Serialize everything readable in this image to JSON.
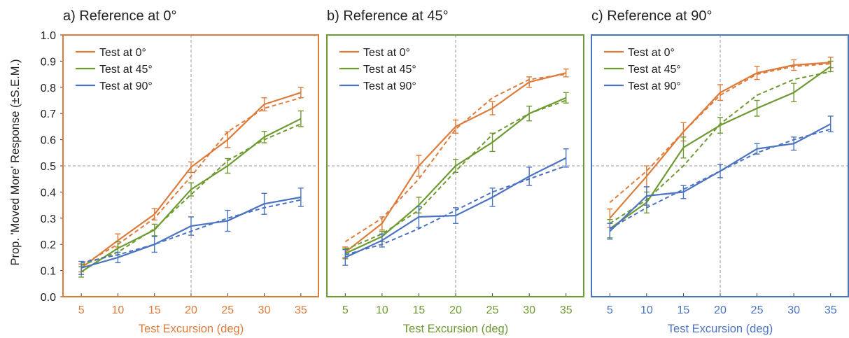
{
  "figure": {
    "ylabel": "Prop. 'Moved More' Response (±S.E.M.)"
  },
  "colors": {
    "test0": "#dd7b3a",
    "test45": "#6e9a32",
    "test90": "#4a73c2",
    "ref_line": "#999999",
    "axis": "#444444"
  },
  "chart_data": [
    {
      "type": "line",
      "title": "a) Reference at 0°",
      "xlabel": "Test Excursion (deg)",
      "frame_color": "#dd7b3a",
      "x": [
        5,
        10,
        15,
        20,
        25,
        30,
        35
      ],
      "xlim": [
        2.5,
        37.5
      ],
      "ylim": [
        0,
        1
      ],
      "yticks": [
        "0.0",
        "0.1",
        "0.2",
        "0.3",
        "0.4",
        "0.5",
        "0.6",
        "0.7",
        "0.8",
        "0.9",
        "1.0"
      ],
      "reference_x": 20,
      "reference_y": 0.5,
      "legend_position": "top-left",
      "series": [
        {
          "name": "Test at 0°",
          "color": "#dd7b3a",
          "values": [
            0.11,
            0.215,
            0.315,
            0.495,
            0.6,
            0.735,
            0.78
          ],
          "sem": [
            0.015,
            0.025,
            0.022,
            0.02,
            0.03,
            0.025,
            0.02
          ],
          "fit": [
            0.12,
            0.2,
            0.3,
            0.46,
            0.63,
            0.72,
            0.76
          ]
        },
        {
          "name": "Test at 45°",
          "color": "#6e9a32",
          "values": [
            0.095,
            0.185,
            0.255,
            0.41,
            0.5,
            0.61,
            0.68
          ],
          "sem": [
            0.02,
            0.025,
            0.022,
            0.025,
            0.028,
            0.022,
            0.03
          ],
          "fit": [
            0.12,
            0.17,
            0.26,
            0.39,
            0.52,
            0.6,
            0.66
          ]
        },
        {
          "name": "Test at 90°",
          "color": "#4a73c2",
          "values": [
            0.11,
            0.15,
            0.2,
            0.27,
            0.29,
            0.355,
            0.38
          ],
          "sem": [
            0.025,
            0.02,
            0.03,
            0.035,
            0.04,
            0.04,
            0.035
          ],
          "fit": [
            0.13,
            0.16,
            0.2,
            0.25,
            0.3,
            0.34,
            0.37
          ]
        }
      ]
    },
    {
      "type": "line",
      "title": "b) Reference at 45°",
      "xlabel": "Test Excursion (deg)",
      "frame_color": "#6e9a32",
      "x": [
        5,
        10,
        15,
        20,
        25,
        30,
        35
      ],
      "xlim": [
        2.5,
        37.5
      ],
      "ylim": [
        0,
        1
      ],
      "reference_x": 20,
      "reference_y": 0.5,
      "legend_position": "top-left",
      "series": [
        {
          "name": "Test at 0°",
          "color": "#dd7b3a",
          "values": [
            0.17,
            0.28,
            0.5,
            0.65,
            0.72,
            0.82,
            0.855
          ],
          "sem": [
            0.02,
            0.025,
            0.04,
            0.025,
            0.025,
            0.02,
            0.015
          ],
          "fit": [
            0.21,
            0.3,
            0.45,
            0.64,
            0.76,
            0.83,
            0.85
          ]
        },
        {
          "name": "Test at 45°",
          "color": "#6e9a32",
          "values": [
            0.165,
            0.23,
            0.35,
            0.5,
            0.59,
            0.7,
            0.76
          ],
          "sem": [
            0.02,
            0.02,
            0.03,
            0.025,
            0.035,
            0.028,
            0.02
          ],
          "fit": [
            0.18,
            0.24,
            0.33,
            0.48,
            0.62,
            0.7,
            0.75
          ]
        },
        {
          "name": "Test at 90°",
          "color": "#4a73c2",
          "values": [
            0.15,
            0.215,
            0.305,
            0.31,
            0.38,
            0.46,
            0.53
          ],
          "sem": [
            0.03,
            0.025,
            0.04,
            0.03,
            0.035,
            0.035,
            0.035
          ],
          "fit": [
            0.16,
            0.2,
            0.26,
            0.33,
            0.4,
            0.45,
            0.5
          ]
        }
      ]
    },
    {
      "type": "line",
      "title": "c) Reference at 90°",
      "xlabel": "Test Excursion (deg)",
      "frame_color": "#4a73c2",
      "x": [
        5,
        10,
        15,
        20,
        25,
        30,
        35
      ],
      "xlim": [
        2.5,
        37.5
      ],
      "ylim": [
        0,
        1
      ],
      "reference_x": 20,
      "reference_y": 0.5,
      "legend_position": "top-left",
      "series": [
        {
          "name": "Test at 0°",
          "color": "#dd7b3a",
          "values": [
            0.3,
            0.46,
            0.63,
            0.78,
            0.855,
            0.885,
            0.895
          ],
          "sem": [
            0.035,
            0.04,
            0.035,
            0.03,
            0.025,
            0.02,
            0.02
          ],
          "fit": [
            0.36,
            0.48,
            0.63,
            0.77,
            0.85,
            0.88,
            0.89
          ]
        },
        {
          "name": "Test at 45°",
          "color": "#6e9a32",
          "values": [
            0.26,
            0.36,
            0.57,
            0.655,
            0.72,
            0.78,
            0.88
          ],
          "sem": [
            0.035,
            0.04,
            0.04,
            0.03,
            0.03,
            0.035,
            0.02
          ],
          "fit": [
            0.28,
            0.37,
            0.5,
            0.66,
            0.77,
            0.83,
            0.86
          ]
        },
        {
          "name": "Test at 90°",
          "color": "#4a73c2",
          "values": [
            0.25,
            0.385,
            0.4,
            0.48,
            0.565,
            0.585,
            0.66
          ],
          "sem": [
            0.03,
            0.035,
            0.025,
            0.025,
            0.02,
            0.025,
            0.03
          ],
          "fit": [
            0.26,
            0.34,
            0.41,
            0.48,
            0.55,
            0.6,
            0.64
          ]
        }
      ]
    }
  ]
}
